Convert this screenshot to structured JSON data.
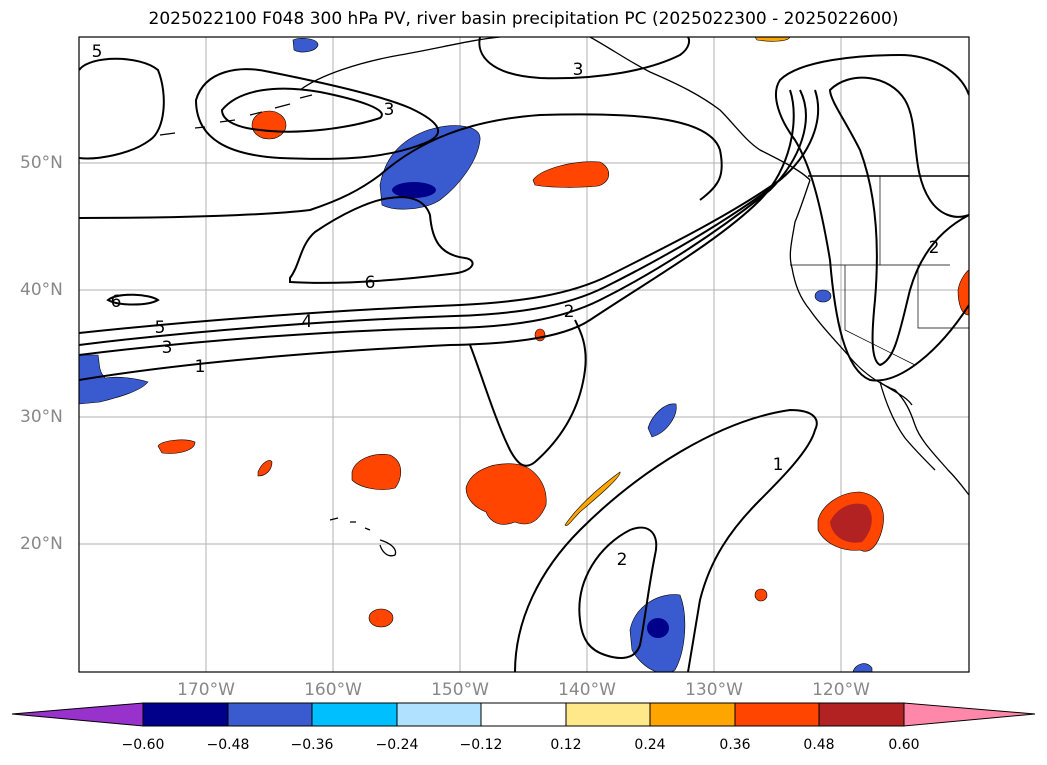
{
  "title": "2025022100 F048 300 hPa PV, river basin precipitation PC (2025022300 - 2025022600)",
  "map": {
    "lat_labels": [
      "50°N",
      "40°N",
      "30°N",
      "20°N"
    ],
    "lon_labels": [
      "170°W",
      "160°W",
      "150°W",
      "140°W",
      "130°W",
      "120°W"
    ],
    "contour_labels": [
      {
        "text": "5"
      },
      {
        "text": "3"
      },
      {
        "text": "3"
      },
      {
        "text": "6"
      },
      {
        "text": "6"
      },
      {
        "text": "5"
      },
      {
        "text": "4"
      },
      {
        "text": "3"
      },
      {
        "text": "1"
      },
      {
        "text": "2"
      },
      {
        "text": "2"
      },
      {
        "text": "1"
      },
      {
        "text": "2"
      }
    ]
  },
  "colorbar": {
    "ticks": [
      "−0.60",
      "−0.48",
      "−0.36",
      "−0.24",
      "−0.12",
      "0.12",
      "0.24",
      "0.36",
      "0.48",
      "0.60"
    ],
    "colors": [
      "#9932cc",
      "#00008b",
      "#3a5bd0",
      "#00bfff",
      "#b0e2ff",
      "#ffffff",
      "#ffe88a",
      "#ffa500",
      "#ff4500",
      "#b22222",
      "#ff88aa"
    ]
  }
}
